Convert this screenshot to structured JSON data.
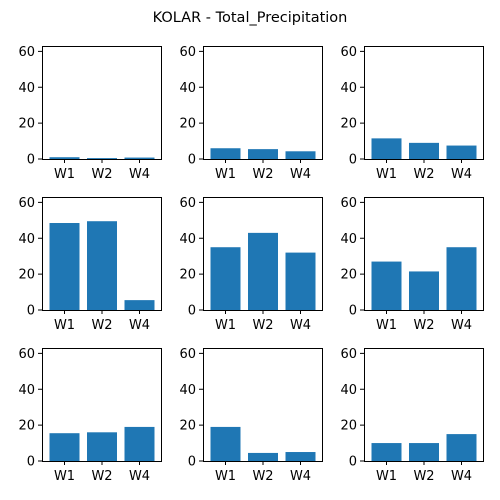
{
  "figure": {
    "title": "KOLAR - Total_Precipitation",
    "bar_color": "#1f77b4"
  },
  "chart_data": [
    {
      "type": "bar",
      "categories": [
        "W1",
        "W2",
        "W4"
      ],
      "values": [
        1.0,
        0.5,
        0.8
      ],
      "ylim": [
        0,
        63
      ],
      "yticks": [
        0,
        20,
        40,
        60
      ],
      "grid": false
    },
    {
      "type": "bar",
      "categories": [
        "W1",
        "W2",
        "W4"
      ],
      "values": [
        6.0,
        5.5,
        4.3
      ],
      "ylim": [
        0,
        63
      ],
      "yticks": [
        0,
        20,
        40,
        60
      ],
      "grid": false
    },
    {
      "type": "bar",
      "categories": [
        "W1",
        "W2",
        "W4"
      ],
      "values": [
        11.5,
        9.0,
        7.5
      ],
      "ylim": [
        0,
        63
      ],
      "yticks": [
        0,
        20,
        40,
        60
      ],
      "grid": false
    },
    {
      "type": "bar",
      "categories": [
        "W1",
        "W2",
        "W4"
      ],
      "values": [
        48.5,
        49.5,
        5.5
      ],
      "ylim": [
        0,
        63
      ],
      "yticks": [
        0,
        20,
        40,
        60
      ],
      "grid": false
    },
    {
      "type": "bar",
      "categories": [
        "W1",
        "W2",
        "W4"
      ],
      "values": [
        35.0,
        43.0,
        32.0
      ],
      "ylim": [
        0,
        63
      ],
      "yticks": [
        0,
        20,
        40,
        60
      ],
      "grid": false
    },
    {
      "type": "bar",
      "categories": [
        "W1",
        "W2",
        "W4"
      ],
      "values": [
        27.0,
        21.5,
        35.0
      ],
      "ylim": [
        0,
        63
      ],
      "yticks": [
        0,
        20,
        40,
        60
      ],
      "grid": false
    },
    {
      "type": "bar",
      "categories": [
        "W1",
        "W2",
        "W4"
      ],
      "values": [
        15.5,
        16.0,
        19.0
      ],
      "ylim": [
        0,
        63
      ],
      "yticks": [
        0,
        20,
        40,
        60
      ],
      "grid": false
    },
    {
      "type": "bar",
      "categories": [
        "W1",
        "W2",
        "W4"
      ],
      "values": [
        19.0,
        4.5,
        5.0
      ],
      "ylim": [
        0,
        63
      ],
      "yticks": [
        0,
        20,
        40,
        60
      ],
      "grid": false
    },
    {
      "type": "bar",
      "categories": [
        "W1",
        "W2",
        "W4"
      ],
      "values": [
        10.0,
        10.0,
        15.0
      ],
      "ylim": [
        0,
        63
      ],
      "yticks": [
        0,
        20,
        40,
        60
      ],
      "grid": false
    }
  ]
}
